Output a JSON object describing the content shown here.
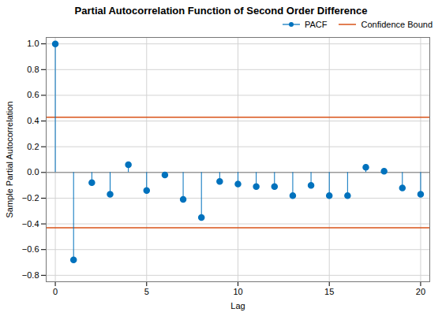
{
  "chart_data": {
    "type": "stem",
    "title": "Partial Autocorrelation Function of Second Order Difference",
    "xlabel": "Lag",
    "ylabel": "Sample Partial Autocorrelation",
    "x": [
      0,
      1,
      2,
      3,
      4,
      5,
      6,
      7,
      8,
      9,
      10,
      11,
      12,
      13,
      14,
      15,
      16,
      17,
      18,
      19,
      20
    ],
    "series": [
      {
        "name": "PACF",
        "color": "#0072BD",
        "marker": "circle",
        "values": [
          1.0,
          -0.68,
          -0.08,
          -0.17,
          0.06,
          -0.14,
          -0.02,
          -0.21,
          -0.35,
          -0.07,
          -0.09,
          -0.11,
          -0.11,
          -0.18,
          -0.1,
          -0.18,
          -0.18,
          0.04,
          0.01,
          -0.12,
          -0.17
        ]
      }
    ],
    "confidence_bounds": {
      "name": "Confidence Bound",
      "color": "#D95319",
      "values": [
        0.43,
        -0.43
      ]
    },
    "xlim": [
      -0.5,
      20.5
    ],
    "xticks": [
      0,
      5,
      10,
      15,
      20
    ],
    "ylim": [
      -0.85,
      1.05
    ],
    "yticks": [
      -0.8,
      -0.6,
      -0.4,
      -0.2,
      {
        "value": 0,
        "label": "0.0"
      },
      0.2,
      0.4,
      0.6,
      0.8,
      {
        "value": 1.0,
        "label": "1.0"
      }
    ],
    "grid": true,
    "legend": "upper right"
  }
}
